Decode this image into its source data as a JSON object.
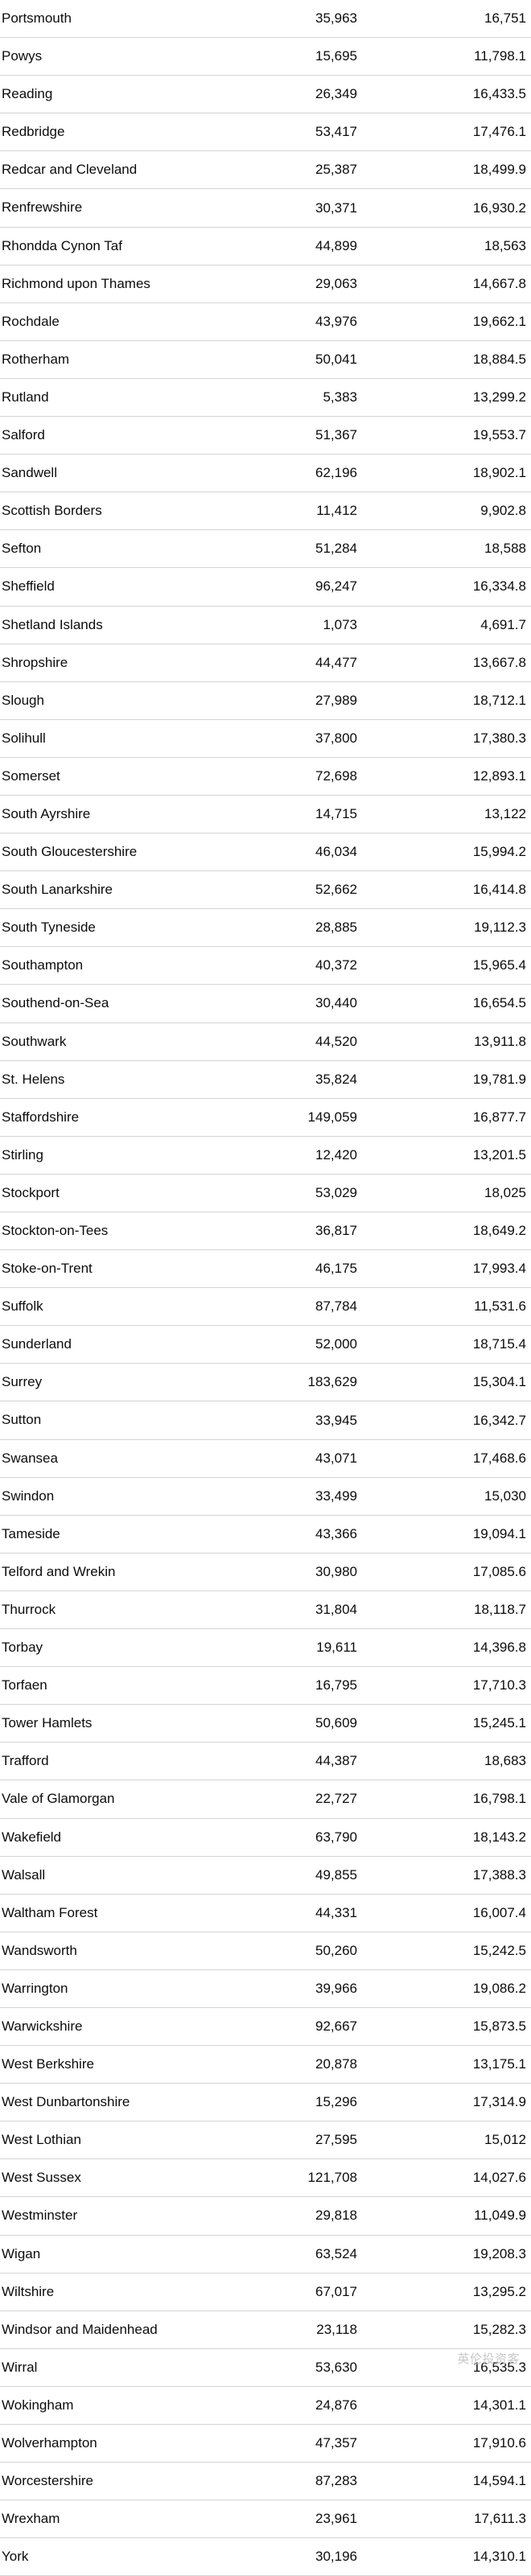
{
  "table": {
    "type": "table",
    "columns": [
      "name",
      "value1",
      "value2"
    ],
    "column_align": [
      "left",
      "right",
      "right"
    ],
    "border_color": "#d4d4d4",
    "text_color": "#0b0c0c",
    "background_color": "#ffffff",
    "font_size_pt": 13,
    "rows": [
      {
        "name": "Portsmouth",
        "value1": "35,963",
        "value2": "16,751"
      },
      {
        "name": "Powys",
        "value1": "15,695",
        "value2": "11,798.1"
      },
      {
        "name": "Reading",
        "value1": "26,349",
        "value2": "16,433.5"
      },
      {
        "name": "Redbridge",
        "value1": "53,417",
        "value2": "17,476.1"
      },
      {
        "name": "Redcar and Cleveland",
        "value1": "25,387",
        "value2": "18,499.9"
      },
      {
        "name": "Renfrewshire",
        "value1": "30,371",
        "value2": "16,930.2"
      },
      {
        "name": "Rhondda Cynon Taf",
        "value1": "44,899",
        "value2": "18,563"
      },
      {
        "name": "Richmond upon Thames",
        "value1": "29,063",
        "value2": "14,667.8"
      },
      {
        "name": "Rochdale",
        "value1": "43,976",
        "value2": "19,662.1"
      },
      {
        "name": "Rotherham",
        "value1": "50,041",
        "value2": "18,884.5"
      },
      {
        "name": "Rutland",
        "value1": "5,383",
        "value2": "13,299.2"
      },
      {
        "name": "Salford",
        "value1": "51,367",
        "value2": "19,553.7"
      },
      {
        "name": "Sandwell",
        "value1": "62,196",
        "value2": "18,902.1"
      },
      {
        "name": "Scottish Borders",
        "value1": "11,412",
        "value2": "9,902.8"
      },
      {
        "name": "Sefton",
        "value1": "51,284",
        "value2": "18,588"
      },
      {
        "name": "Sheffield",
        "value1": "96,247",
        "value2": "16,334.8"
      },
      {
        "name": "Shetland Islands",
        "value1": "1,073",
        "value2": "4,691.7"
      },
      {
        "name": "Shropshire",
        "value1": "44,477",
        "value2": "13,667.8"
      },
      {
        "name": "Slough",
        "value1": "27,989",
        "value2": "18,712.1"
      },
      {
        "name": "Solihull",
        "value1": "37,800",
        "value2": "17,380.3"
      },
      {
        "name": "Somerset",
        "value1": "72,698",
        "value2": "12,893.1"
      },
      {
        "name": "South Ayrshire",
        "value1": "14,715",
        "value2": "13,122"
      },
      {
        "name": "South Gloucestershire",
        "value1": "46,034",
        "value2": "15,994.2"
      },
      {
        "name": "South Lanarkshire",
        "value1": "52,662",
        "value2": "16,414.8"
      },
      {
        "name": "South Tyneside",
        "value1": "28,885",
        "value2": "19,112.3"
      },
      {
        "name": "Southampton",
        "value1": "40,372",
        "value2": "15,965.4"
      },
      {
        "name": "Southend-on-Sea",
        "value1": "30,440",
        "value2": "16,654.5"
      },
      {
        "name": "Southwark",
        "value1": "44,520",
        "value2": "13,911.8"
      },
      {
        "name": "St. Helens",
        "value1": "35,824",
        "value2": "19,781.9"
      },
      {
        "name": "Staffordshire",
        "value1": "149,059",
        "value2": "16,877.7"
      },
      {
        "name": "Stirling",
        "value1": "12,420",
        "value2": "13,201.5"
      },
      {
        "name": "Stockport",
        "value1": "53,029",
        "value2": "18,025"
      },
      {
        "name": "Stockton-on-Tees",
        "value1": "36,817",
        "value2": "18,649.2"
      },
      {
        "name": "Stoke-on-Trent",
        "value1": "46,175",
        "value2": "17,993.4"
      },
      {
        "name": "Suffolk",
        "value1": "87,784",
        "value2": "11,531.6"
      },
      {
        "name": "Sunderland",
        "value1": "52,000",
        "value2": "18,715.4"
      },
      {
        "name": "Surrey",
        "value1": "183,629",
        "value2": "15,304.1"
      },
      {
        "name": "Sutton",
        "value1": "33,945",
        "value2": "16,342.7"
      },
      {
        "name": "Swansea",
        "value1": "43,071",
        "value2": "17,468.6"
      },
      {
        "name": "Swindon",
        "value1": "33,499",
        "value2": "15,030"
      },
      {
        "name": "Tameside",
        "value1": "43,366",
        "value2": "19,094.1"
      },
      {
        "name": "Telford and Wrekin",
        "value1": "30,980",
        "value2": "17,085.6"
      },
      {
        "name": "Thurrock",
        "value1": "31,804",
        "value2": "18,118.7"
      },
      {
        "name": "Torbay",
        "value1": "19,611",
        "value2": "14,396.8"
      },
      {
        "name": "Torfaen",
        "value1": "16,795",
        "value2": "17,710.3"
      },
      {
        "name": "Tower Hamlets",
        "value1": "50,609",
        "value2": "15,245.1"
      },
      {
        "name": "Trafford",
        "value1": "44,387",
        "value2": "18,683"
      },
      {
        "name": "Vale of Glamorgan",
        "value1": "22,727",
        "value2": "16,798.1"
      },
      {
        "name": "Wakefield",
        "value1": "63,790",
        "value2": "18,143.2"
      },
      {
        "name": "Walsall",
        "value1": "49,855",
        "value2": "17,388.3"
      },
      {
        "name": "Waltham Forest",
        "value1": "44,331",
        "value2": "16,007.4"
      },
      {
        "name": "Wandsworth",
        "value1": "50,260",
        "value2": "15,242.5"
      },
      {
        "name": "Warrington",
        "value1": "39,966",
        "value2": "19,086.2"
      },
      {
        "name": "Warwickshire",
        "value1": "92,667",
        "value2": "15,873.5"
      },
      {
        "name": "West Berkshire",
        "value1": "20,878",
        "value2": "13,175.1"
      },
      {
        "name": "West Dunbartonshire",
        "value1": "15,296",
        "value2": "17,314.9"
      },
      {
        "name": "West Lothian",
        "value1": "27,595",
        "value2": "15,012"
      },
      {
        "name": "West Sussex",
        "value1": "121,708",
        "value2": "14,027.6"
      },
      {
        "name": "Westminster",
        "value1": "29,818",
        "value2": "11,049.9"
      },
      {
        "name": "Wigan",
        "value1": "63,524",
        "value2": "19,208.3"
      },
      {
        "name": "Wiltshire",
        "value1": "67,017",
        "value2": "13,295.2"
      },
      {
        "name": "Windsor and Maidenhead",
        "value1": "23,118",
        "value2": "15,282.3"
      },
      {
        "name": "Wirral",
        "value1": "53,630",
        "value2": "16,535.3"
      },
      {
        "name": "Wokingham",
        "value1": "24,876",
        "value2": "14,301.1"
      },
      {
        "name": "Wolverhampton",
        "value1": "47,357",
        "value2": "17,910.6"
      },
      {
        "name": "Worcestershire",
        "value1": "87,283",
        "value2": "14,594.1"
      },
      {
        "name": "Wrexham",
        "value1": "23,961",
        "value2": "17,611.3"
      },
      {
        "name": "York",
        "value1": "30,196",
        "value2": "14,310.1"
      }
    ]
  },
  "watermark": "英伦投资客"
}
